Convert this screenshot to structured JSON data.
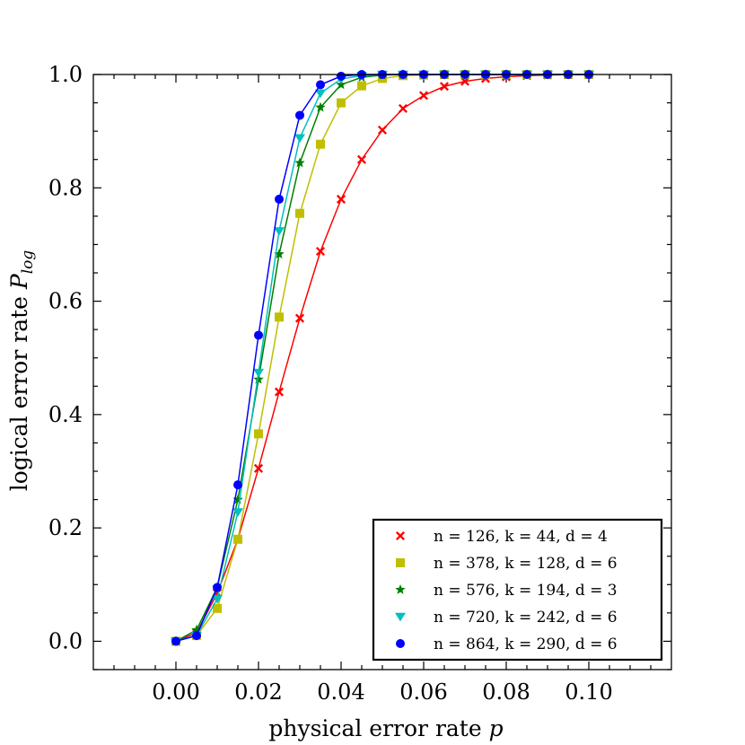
{
  "chart_data": {
    "type": "line",
    "title": "",
    "xlabel": "physical error rate ",
    "xlabel_var": "p",
    "ylabel": "logical error rate ",
    "ylabel_var": "P",
    "ylabel_sub": "log",
    "xlim": [
      -0.02,
      0.12
    ],
    "ylim": [
      -0.05,
      1.0
    ],
    "xticks": [
      0.0,
      0.02,
      0.04,
      0.06,
      0.08,
      0.1
    ],
    "xtick_labels": [
      "0.00",
      "0.02",
      "0.04",
      "0.06",
      "0.08",
      "0.10"
    ],
    "yticks": [
      0.0,
      0.2,
      0.4,
      0.6,
      0.8,
      1.0
    ],
    "ytick_labels": [
      "0.0",
      "0.2",
      "0.4",
      "0.6",
      "0.8",
      "1.0"
    ],
    "legend_position": "lower-right",
    "x": [
      0.0,
      0.005,
      0.01,
      0.015,
      0.02,
      0.025,
      0.03,
      0.035,
      0.04,
      0.045,
      0.05,
      0.055,
      0.06,
      0.065,
      0.07,
      0.075,
      0.08,
      0.085,
      0.09,
      0.095,
      0.1
    ],
    "series": [
      {
        "name": "n = 126, k = 44, d = 4",
        "color": "#ff0000",
        "marker": "x",
        "values": [
          0.0,
          0.015,
          0.085,
          0.18,
          0.305,
          0.44,
          0.57,
          0.688,
          0.78,
          0.85,
          0.902,
          0.94,
          0.963,
          0.979,
          0.988,
          0.993,
          0.996,
          0.998,
          0.999,
          1.0,
          1.0
        ]
      },
      {
        "name": "n = 378, k = 128, d = 6",
        "color": "#bfbf00",
        "marker": "square",
        "values": [
          0.0,
          0.01,
          0.058,
          0.18,
          0.366,
          0.572,
          0.755,
          0.877,
          0.95,
          0.98,
          0.993,
          0.998,
          0.999,
          1.0,
          1.0,
          1.0,
          1.0,
          1.0,
          1.0,
          1.0,
          1.0
        ]
      },
      {
        "name": "n = 576, k = 194, d = 3",
        "color": "#007f00",
        "marker": "star",
        "values": [
          0.0,
          0.02,
          0.095,
          0.25,
          0.462,
          0.683,
          0.844,
          0.942,
          0.982,
          0.995,
          0.999,
          1.0,
          1.0,
          1.0,
          1.0,
          1.0,
          1.0,
          1.0,
          1.0,
          1.0,
          1.0
        ]
      },
      {
        "name": "n = 720, k = 242, d = 6",
        "color": "#00bfbf",
        "marker": "triangle-down",
        "values": [
          0.0,
          0.01,
          0.075,
          0.228,
          0.474,
          0.724,
          0.888,
          0.967,
          0.992,
          0.998,
          1.0,
          1.0,
          1.0,
          1.0,
          1.0,
          1.0,
          1.0,
          1.0,
          1.0,
          1.0,
          1.0
        ]
      },
      {
        "name": "n = 864, k = 290, d = 6",
        "color": "#0000ff",
        "marker": "circle",
        "values": [
          0.0,
          0.01,
          0.095,
          0.276,
          0.54,
          0.78,
          0.928,
          0.982,
          0.997,
          1.0,
          1.0,
          1.0,
          1.0,
          1.0,
          1.0,
          1.0,
          1.0,
          1.0,
          1.0,
          1.0,
          1.0
        ]
      }
    ]
  }
}
